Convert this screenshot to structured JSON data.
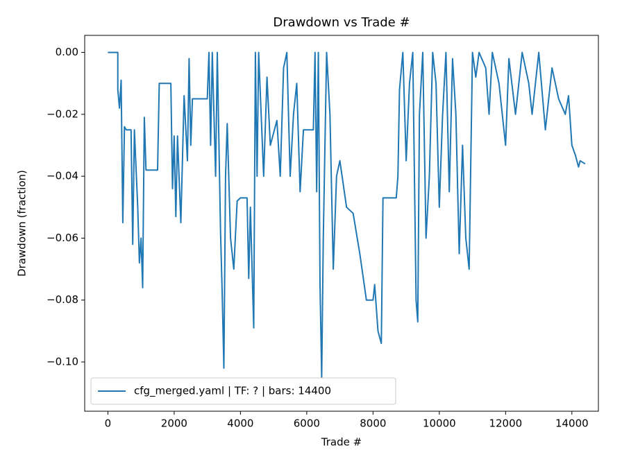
{
  "chart_data": {
    "type": "line",
    "title": "Drawdown vs Trade #",
    "xlabel": "Trade #",
    "ylabel": "Drawdown (fraction)",
    "x": [
      0,
      300,
      300,
      350,
      400,
      450,
      500,
      550,
      700,
      750,
      800,
      900,
      950,
      1000,
      1050,
      1100,
      1150,
      1500,
      1550,
      1900,
      1950,
      2000,
      2050,
      2100,
      2200,
      2300,
      2400,
      2450,
      2500,
      2550,
      3000,
      3050,
      3100,
      3150,
      3250,
      3300,
      3400,
      3450,
      3500,
      3550,
      3600,
      3700,
      3800,
      3900,
      4000,
      4200,
      4250,
      4300,
      4400,
      4450,
      4500,
      4550,
      4700,
      4800,
      4900,
      5100,
      5200,
      5300,
      5400,
      5500,
      5600,
      5700,
      5800,
      5900,
      6200,
      6250,
      6300,
      6350,
      6400,
      6450,
      6500,
      6550,
      6600,
      6700,
      6800,
      6900,
      7000,
      7200,
      7400,
      7600,
      7800,
      8000,
      8050,
      8150,
      8250,
      8300,
      8700,
      8750,
      8800,
      8900,
      9000,
      9100,
      9200,
      9300,
      9350,
      9400,
      9500,
      9600,
      9700,
      9800,
      9900,
      10000,
      10100,
      10200,
      10300,
      10400,
      10500,
      10600,
      10700,
      10800,
      10900,
      11000,
      11100,
      11200,
      11400,
      11500,
      11600,
      11800,
      12000,
      12100,
      12300,
      12500,
      12700,
      12800,
      13000,
      13200,
      13400,
      13600,
      13800,
      13900,
      14000,
      14100,
      14200,
      14250,
      14400
    ],
    "series": [
      {
        "name": "cfg_merged.yaml | TF: ? | bars: 14400",
        "color": "#1f77b4",
        "values": [
          0,
          0,
          -0.012,
          -0.018,
          -0.009,
          -0.055,
          -0.024,
          -0.025,
          -0.025,
          -0.062,
          -0.025,
          -0.05,
          -0.068,
          -0.06,
          -0.076,
          -0.021,
          -0.038,
          -0.038,
          -0.01,
          -0.01,
          -0.044,
          -0.027,
          -0.053,
          -0.027,
          -0.055,
          -0.014,
          -0.035,
          -0.002,
          -0.03,
          -0.015,
          -0.015,
          0,
          -0.03,
          0,
          -0.04,
          0,
          -0.058,
          -0.078,
          -0.102,
          -0.04,
          -0.023,
          -0.06,
          -0.07,
          -0.048,
          -0.047,
          -0.047,
          -0.073,
          -0.05,
          -0.089,
          0,
          -0.04,
          0,
          -0.04,
          -0.008,
          -0.03,
          -0.022,
          -0.04,
          -0.005,
          0,
          -0.04,
          -0.02,
          -0.01,
          -0.045,
          -0.025,
          -0.025,
          0,
          -0.045,
          0,
          -0.075,
          -0.105,
          -0.06,
          -0.03,
          0,
          -0.02,
          -0.07,
          -0.04,
          -0.035,
          -0.05,
          -0.052,
          -0.065,
          -0.08,
          -0.08,
          -0.075,
          -0.09,
          -0.094,
          -0.047,
          -0.047,
          -0.04,
          -0.012,
          0,
          -0.035,
          -0.01,
          0,
          -0.08,
          -0.087,
          -0.02,
          0,
          -0.06,
          -0.04,
          0,
          -0.01,
          -0.05,
          -0.02,
          0,
          -0.045,
          -0.002,
          -0.02,
          -0.065,
          -0.03,
          -0.06,
          -0.07,
          0,
          -0.008,
          0,
          -0.005,
          -0.02,
          0,
          -0.01,
          -0.03,
          -0.002,
          -0.02,
          0,
          -0.01,
          -0.02,
          0,
          -0.025,
          -0.005,
          -0.015,
          -0.02,
          -0.014,
          -0.03,
          -0.033,
          -0.037,
          -0.035,
          -0.036
        ]
      }
    ],
    "xlim": [
      -700,
      14800
    ],
    "ylim": [
      -0.1159,
      0.0055
    ],
    "xticks": [
      0,
      2000,
      4000,
      6000,
      8000,
      10000,
      12000,
      14000
    ],
    "yticks": [
      {
        "value": -0.1,
        "label": "−0.10"
      },
      {
        "value": -0.08,
        "label": "−0.08"
      },
      {
        "value": -0.06,
        "label": "−0.06"
      },
      {
        "value": -0.04,
        "label": "−0.04"
      },
      {
        "value": -0.02,
        "label": "−0.02"
      },
      {
        "value": 0,
        "label": "0.00"
      }
    ],
    "grid": false,
    "legend": "lower left"
  }
}
